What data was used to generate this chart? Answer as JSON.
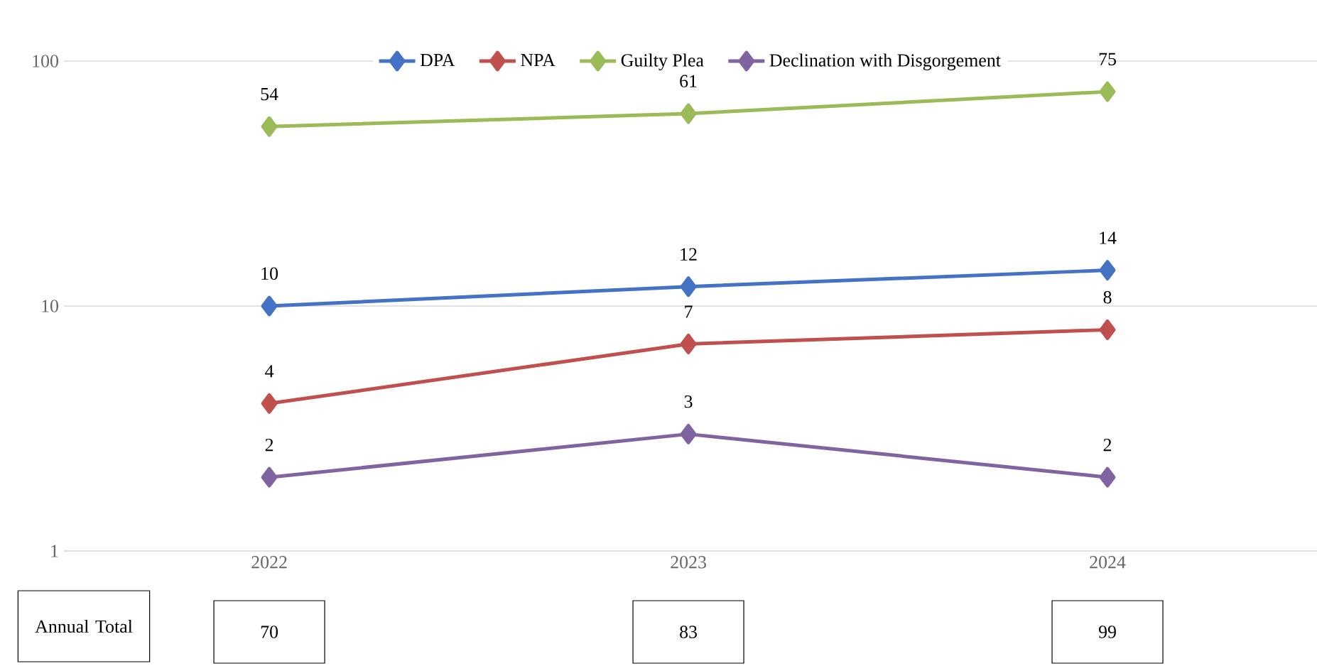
{
  "chart_data": {
    "type": "line",
    "categories": [
      "2022",
      "2023",
      "2024"
    ],
    "series": [
      {
        "name": "DPA",
        "color": "#4472c4",
        "values": [
          10,
          12,
          14
        ]
      },
      {
        "name": "NPA",
        "color": "#c0504d",
        "values": [
          4,
          7,
          8
        ]
      },
      {
        "name": "Guilty Plea",
        "color": "#9bbb59",
        "values": [
          54,
          61,
          75
        ]
      },
      {
        "name": "Declination with Disgorgement",
        "color": "#8064a2",
        "values": [
          2,
          3,
          2
        ]
      }
    ],
    "log": "y",
    "ylim": [
      1,
      100
    ],
    "yticks": [
      1,
      10,
      100
    ],
    "grid": "y",
    "legend": "top",
    "marker": "diamond",
    "data_labels": true,
    "annotations": [
      "Annual Total",
      "70",
      "83",
      "99"
    ]
  }
}
